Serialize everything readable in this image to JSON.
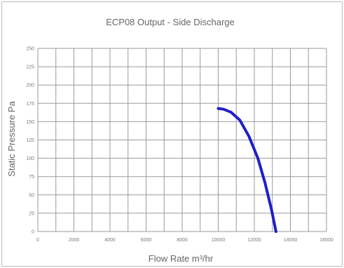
{
  "chart_data": {
    "type": "line",
    "title": "ECP08 Output - Side Discharge",
    "xlabel": "Flow Rate m³/hr",
    "ylabel": "Static Pressure Pa",
    "xlim": [
      0,
      16000
    ],
    "ylim": [
      0,
      250
    ],
    "x_ticks": [
      "0",
      "2000",
      "4000",
      "6000",
      "8000",
      "10000",
      "12000",
      "14000",
      "16000"
    ],
    "y_ticks": [
      "0",
      "25",
      "50",
      "75",
      "100",
      "125",
      "150",
      "175",
      "200",
      "225",
      "250"
    ],
    "grid": true,
    "minor_x_step": 1000,
    "series": [
      {
        "color": "#1f1fc8",
        "x": [
          10000,
          10300,
          10700,
          11200,
          11700,
          12200,
          12600,
          12950,
          13200
        ],
        "y": [
          168,
          167,
          163,
          152,
          130,
          100,
          66,
          30,
          0
        ]
      }
    ]
  }
}
